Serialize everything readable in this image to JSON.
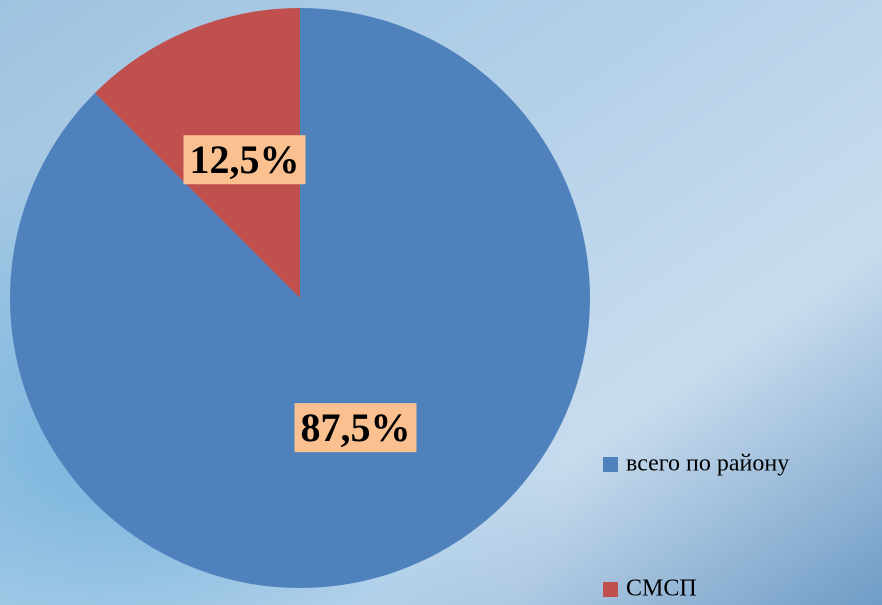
{
  "chart_data": {
    "type": "pie",
    "categories": [
      "всего по району",
      "СМСП"
    ],
    "values": [
      87.5,
      12.5
    ],
    "value_labels": [
      "87,5%",
      "12,5%"
    ],
    "colors": [
      "#4f81bd",
      "#c0504d"
    ],
    "legend": "right"
  }
}
